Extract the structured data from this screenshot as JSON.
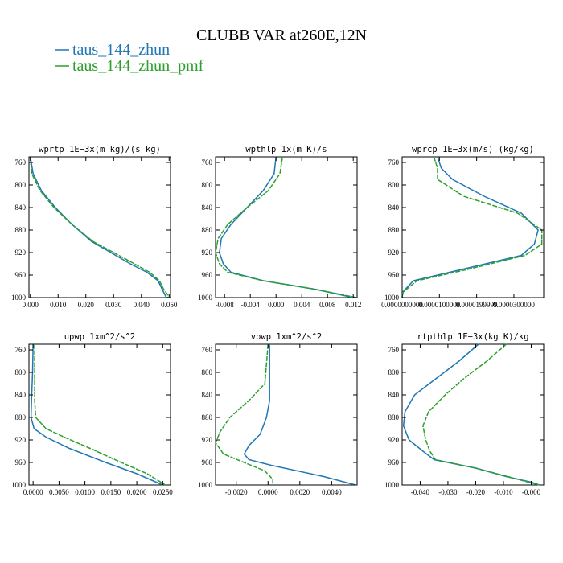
{
  "figure": {
    "title": "CLUBB VAR at260E,12N",
    "legend": [
      {
        "label": "taus_144_zhun",
        "color": "#1f77b4"
      },
      {
        "label": "taus_144_zhun_pmf",
        "color": "#2ca02c"
      }
    ]
  },
  "chart_data": [
    {
      "type": "line",
      "title": "wprtp  1E−3x(m kg)/(s kg)",
      "xlim": [
        -0.0005,
        0.0505
      ],
      "ylim": [
        1000,
        750
      ],
      "xticks": [
        0.0,
        0.01,
        0.02,
        0.03,
        0.04,
        0.05
      ],
      "xtick_labels": [
        "0.000",
        "0.010",
        "0.020",
        "0.030",
        "0.040",
        "0.050"
      ],
      "yticks": [
        760,
        800,
        840,
        880,
        920,
        960,
        1000
      ],
      "series": [
        {
          "name": "taus_144_zhun",
          "color": "#1f77b4",
          "x": [
            0.0,
            0.001,
            0.004,
            0.009,
            0.015,
            0.022,
            0.029,
            0.036,
            0.042,
            0.046,
            0.0475,
            0.0485,
            0.049
          ],
          "y": [
            750,
            780,
            810,
            840,
            870,
            900,
            920,
            940,
            955,
            970,
            985,
            995,
            1000
          ]
        },
        {
          "name": "taus_144_zhun_pmf",
          "color": "#2ca02c",
          "x": [
            0.0,
            0.0005,
            0.0035,
            0.0085,
            0.015,
            0.0225,
            0.03,
            0.0375,
            0.043,
            0.0465,
            0.048,
            0.0495,
            0.0495
          ],
          "y": [
            750,
            780,
            810,
            840,
            870,
            900,
            920,
            940,
            955,
            970,
            985,
            995,
            1000
          ]
        }
      ]
    },
    {
      "type": "line",
      "title": "wpthlp  1x(m K)/s",
      "xlim": [
        -0.0094,
        0.0126
      ],
      "ylim": [
        1000,
        750
      ],
      "xticks": [
        -0.008,
        -0.004,
        0.0,
        0.004,
        0.008,
        0.012
      ],
      "xtick_labels": [
        "-0.008",
        "-0.004",
        "0.000",
        "0.004",
        "0.008",
        "0.012"
      ],
      "yticks": [
        760,
        800,
        840,
        880,
        920,
        960,
        1000
      ],
      "series": [
        {
          "name": "taus_144_zhun",
          "color": "#1f77b4",
          "x": [
            0.0,
            -0.0003,
            -0.002,
            -0.0045,
            -0.007,
            -0.0085,
            -0.0088,
            -0.0082,
            -0.007,
            -0.002,
            0.006,
            0.012
          ],
          "y": [
            750,
            780,
            810,
            840,
            870,
            895,
            920,
            940,
            955,
            970,
            985,
            1000
          ]
        },
        {
          "name": "taus_144_zhun_pmf",
          "color": "#2ca02c",
          "x": [
            0.001,
            0.0006,
            -0.0012,
            -0.0045,
            -0.0075,
            -0.009,
            -0.0094,
            -0.0088,
            -0.0075,
            -0.002,
            0.006,
            0.0125
          ],
          "y": [
            750,
            780,
            810,
            840,
            870,
            895,
            920,
            940,
            955,
            970,
            985,
            1000
          ]
        }
      ]
    },
    {
      "type": "line",
      "title": "wprcp  1E−3x(m/s) (kg/kg)",
      "xlim": [
        0.0,
        3.8e-05
      ],
      "ylim": [
        1000,
        750
      ],
      "xticks": [
        0.0,
        1e-05,
        2e-05,
        3e-05
      ],
      "xtick_labels": [
        "0.0000000000",
        "0.0000100000",
        "0.0000199999",
        "0.0000300000"
      ],
      "yticks": [
        760,
        800,
        840,
        880,
        920,
        960,
        1000
      ],
      "series": [
        {
          "name": "taus_144_zhun",
          "color": "#1f77b4",
          "x": [
            9.5e-06,
            1.05e-05,
            1.35e-05,
            2.2e-05,
            3.2e-05,
            3.65e-05,
            3.55e-05,
            3.2e-05,
            1.6e-05,
            3e-06,
            2e-07,
            0.0
          ],
          "y": [
            750,
            770,
            790,
            820,
            850,
            880,
            905,
            925,
            950,
            970,
            990,
            1000
          ]
        },
        {
          "name": "taus_144_zhun_pmf",
          "color": "#2ca02c",
          "x": [
            8.5e-06,
            9.5e-06,
            9.5e-06,
            1.65e-05,
            3.1e-05,
            3.75e-05,
            3.75e-05,
            3.3e-05,
            1.75e-05,
            4e-06,
            3e-07,
            0.0
          ],
          "y": [
            750,
            770,
            790,
            820,
            850,
            880,
            905,
            925,
            950,
            970,
            990,
            1000
          ]
        }
      ]
    },
    {
      "type": "line",
      "title": "upwp  1xm^2/s^2",
      "xlim": [
        -0.0008,
        0.0265
      ],
      "ylim": [
        1000,
        750
      ],
      "xticks": [
        0.0,
        0.005,
        0.01,
        0.015,
        0.02,
        0.025
      ],
      "xtick_labels": [
        "0.0000",
        "0.0050",
        "0.0100",
        "0.0150",
        "0.0200",
        "0.0250"
      ],
      "yticks": [
        760,
        800,
        840,
        880,
        920,
        960,
        1000
      ],
      "series": [
        {
          "name": "taus_144_zhun",
          "color": "#1f77b4",
          "x": [
            0.0,
            -0.0001,
            -0.0003,
            -0.0004,
            0.0002,
            0.0025,
            0.007,
            0.014,
            0.02,
            0.025
          ],
          "y": [
            750,
            800,
            850,
            880,
            900,
            915,
            935,
            960,
            980,
            1000
          ]
        },
        {
          "name": "taus_144_zhun_pmf",
          "color": "#2ca02c",
          "x": [
            0.0003,
            0.0003,
            0.0003,
            0.0005,
            0.0025,
            0.006,
            0.011,
            0.017,
            0.022,
            0.0255
          ],
          "y": [
            750,
            800,
            850,
            880,
            900,
            915,
            935,
            960,
            980,
            1000
          ]
        }
      ]
    },
    {
      "type": "line",
      "title": "vpwp  1xm^2/s^2",
      "xlim": [
        -0.0033,
        0.0056
      ],
      "ylim": [
        1000,
        750
      ],
      "xticks": [
        -0.002,
        0.0,
        0.002,
        0.004
      ],
      "xtick_labels": [
        "-0.0020",
        "0.0000",
        "0.0020",
        "0.0040"
      ],
      "yticks": [
        760,
        800,
        840,
        880,
        920,
        960,
        1000
      ],
      "series": [
        {
          "name": "taus_144_zhun",
          "color": "#1f77b4",
          "x": [
            0.0001,
            0.0001,
            0.0001,
            -0.0001,
            -0.0005,
            -0.0012,
            -0.0015,
            -0.0012,
            0.0002,
            0.0035,
            0.0055
          ],
          "y": [
            750,
            800,
            850,
            880,
            910,
            930,
            945,
            955,
            965,
            985,
            1000
          ]
        },
        {
          "name": "taus_144_zhun_pmf",
          "color": "#2ca02c",
          "x": [
            0.0,
            -0.0002,
            -0.0012,
            -0.0024,
            -0.003,
            -0.0033,
            -0.0028,
            -0.0015,
            -0.0002,
            0.0003,
            0.0003
          ],
          "y": [
            750,
            820,
            850,
            880,
            905,
            925,
            945,
            960,
            975,
            990,
            1000
          ]
        }
      ]
    },
    {
      "type": "line",
      "title": "rtpthlp  1E−3x(kg K)/kg",
      "xlim": [
        -0.0465,
        0.0045
      ],
      "ylim": [
        1000,
        750
      ],
      "xticks": [
        -0.04,
        -0.03,
        -0.02,
        -0.01,
        0.0
      ],
      "xtick_labels": [
        "-0.040",
        "-0.030",
        "-0.020",
        "-0.010",
        "-0.000"
      ],
      "yticks": [
        760,
        800,
        840,
        880,
        920,
        960,
        1000
      ],
      "series": [
        {
          "name": "taus_144_zhun",
          "color": "#1f77b4",
          "x": [
            -0.019,
            -0.026,
            -0.034,
            -0.042,
            -0.0455,
            -0.046,
            -0.044,
            -0.039,
            -0.035,
            -0.02,
            -0.009,
            0.0,
            0.003
          ],
          "y": [
            750,
            780,
            810,
            840,
            870,
            895,
            920,
            940,
            955,
            970,
            985,
            995,
            1000
          ]
        },
        {
          "name": "taus_144_zhun_pmf",
          "color": "#2ca02c",
          "x": [
            -0.009,
            -0.016,
            -0.024,
            -0.031,
            -0.037,
            -0.039,
            -0.038,
            -0.0365,
            -0.0345,
            -0.02,
            -0.0085,
            -0.001,
            0.003
          ],
          "y": [
            750,
            780,
            810,
            840,
            870,
            895,
            920,
            940,
            955,
            970,
            985,
            995,
            1000
          ]
        }
      ]
    }
  ]
}
